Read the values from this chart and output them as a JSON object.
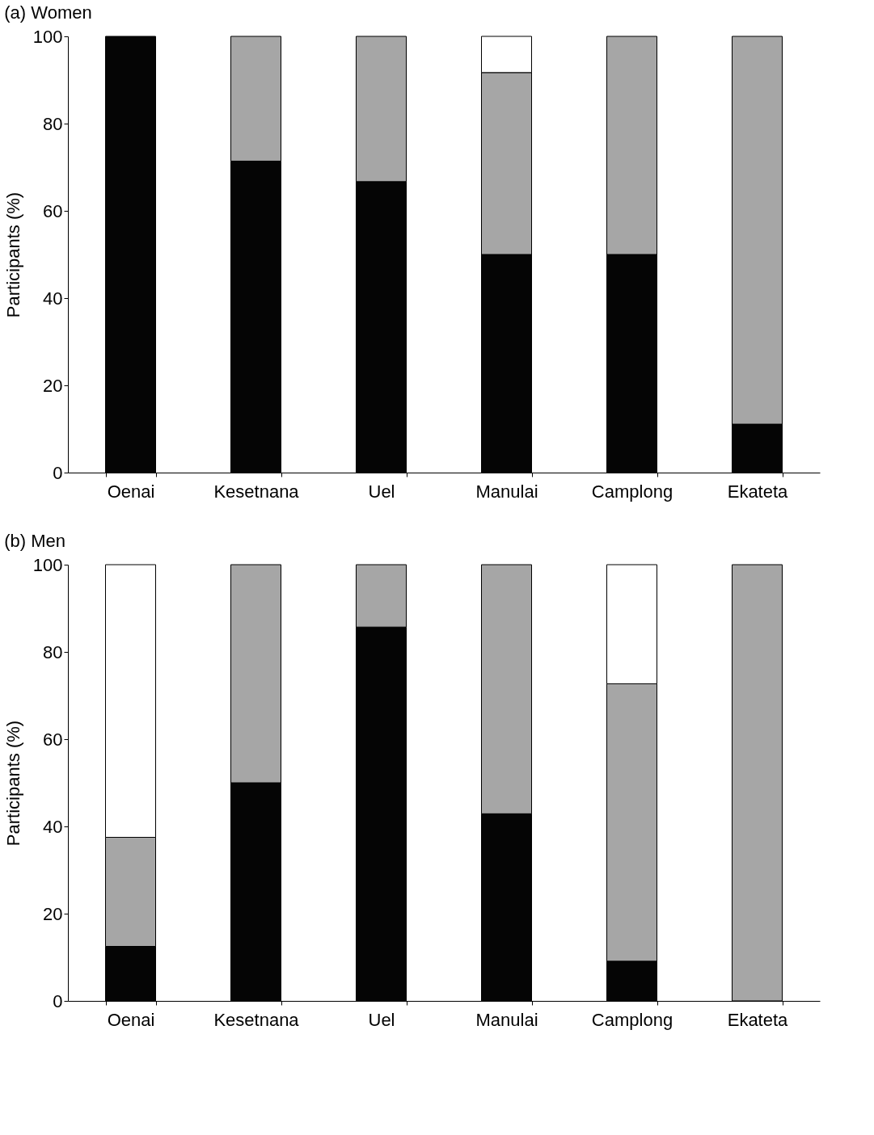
{
  "chart_data": [
    {
      "type": "bar",
      "title": "(a) Women",
      "ylabel": "Participants (%)",
      "stacked": true,
      "categories": [
        "Oenai",
        "Kesetnana",
        "Uel",
        "Manulai",
        "Camplong",
        "Ekateta"
      ],
      "series": [
        {
          "color": "#050505",
          "values": [
            100,
            71.4,
            66.7,
            50,
            50,
            11.1
          ]
        },
        {
          "color": "#a6a6a6",
          "values": [
            null,
            28.6,
            33.3,
            41.7,
            50,
            88.9
          ]
        },
        {
          "color": "#ffffff",
          "values": [
            null,
            null,
            null,
            8.3,
            null,
            null
          ]
        }
      ],
      "ylim": [
        0,
        100
      ],
      "yticks": [
        0,
        20,
        40,
        60,
        80,
        100
      ],
      "grid": false
    },
    {
      "type": "bar",
      "title": "(b) Men",
      "ylabel": "Participants (%)",
      "stacked": true,
      "categories": [
        "Oenai",
        "Kesetnana",
        "Uel",
        "Manulai",
        "Camplong",
        "Ekateta"
      ],
      "series": [
        {
          "color": "#050505",
          "values": [
            12.5,
            50,
            85.7,
            42.9,
            9.1,
            null
          ]
        },
        {
          "color": "#a6a6a6",
          "values": [
            25,
            50,
            14.3,
            57.1,
            63.6,
            100
          ]
        },
        {
          "color": "#ffffff",
          "values": [
            62.5,
            null,
            null,
            null,
            27.3,
            null
          ]
        }
      ],
      "ylim": [
        0,
        100
      ],
      "yticks": [
        0,
        20,
        40,
        60,
        80,
        100
      ],
      "grid": false
    }
  ]
}
